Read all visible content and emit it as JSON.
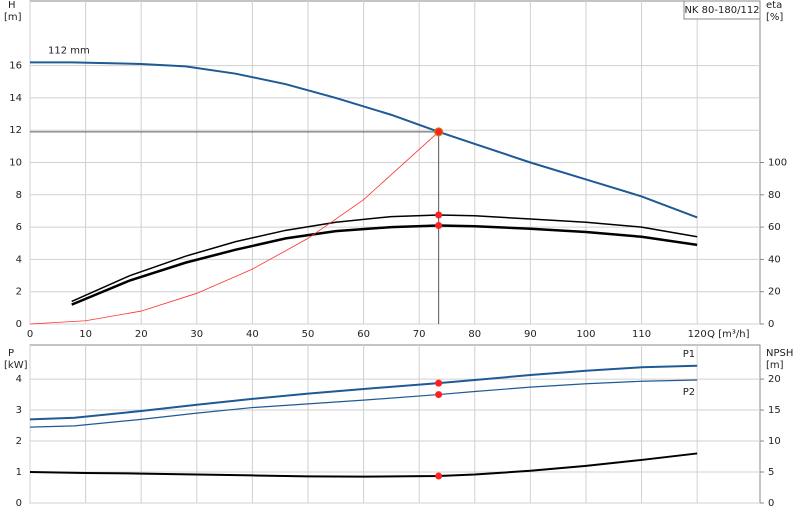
{
  "chart_data": [
    {
      "type": "line",
      "title": "NK 80-180/112",
      "ylabel": "H",
      "yunit": "[m]",
      "y2label": "eta",
      "y2unit": "[%]",
      "xlabel": "Q [m³/h]",
      "xlim": [
        0,
        131.3
      ],
      "xticks": [
        0,
        10,
        20,
        30,
        40,
        50,
        60,
        70,
        80,
        90,
        100,
        110,
        120
      ],
      "ylim": [
        0,
        20
      ],
      "yticks": [
        0,
        2,
        4,
        6,
        8,
        10,
        12,
        14,
        16
      ],
      "y2lim": [
        0,
        200
      ],
      "y2ticks": [
        0,
        20,
        40,
        60,
        80,
        100
      ],
      "grid": true,
      "operating_point": {
        "x": 73.5,
        "y": 11.9
      },
      "series": [
        {
          "name": "112 mm",
          "color": "#1f5a96",
          "line_width": 2,
          "x": [
            0,
            7.5,
            20,
            28,
            37,
            46,
            55,
            65,
            73.5,
            80,
            90,
            100,
            110,
            120
          ],
          "values": [
            16.2,
            16.2,
            16.1,
            15.95,
            15.5,
            14.85,
            14.0,
            12.95,
            11.9,
            11.15,
            10.0,
            8.95,
            7.9,
            6.6
          ]
        },
        {
          "color": "#000000",
          "line_width": 1.5,
          "axis": "y2",
          "x": [
            7.5,
            18,
            28,
            37,
            46,
            55,
            65,
            73.5,
            80,
            90,
            100,
            110,
            120
          ],
          "values": [
            14,
            30,
            42,
            51,
            58,
            63,
            66.5,
            67.5,
            67,
            65,
            63,
            60,
            54
          ]
        },
        {
          "color": "#000000",
          "line_width": 2.5,
          "axis": "y2",
          "x": [
            7.5,
            18,
            28,
            37,
            46,
            55,
            65,
            73.5,
            80,
            90,
            100,
            110,
            120
          ],
          "values": [
            12,
            27,
            38,
            46,
            53,
            57.5,
            60,
            61,
            60.5,
            59,
            57,
            54,
            49
          ]
        },
        {
          "color": "#ff3030",
          "line_width": 0.8,
          "x": [
            0,
            10,
            20,
            30,
            40,
            50,
            60,
            73.5
          ],
          "values": [
            0,
            0.2,
            0.8,
            1.9,
            3.4,
            5.3,
            7.7,
            11.9
          ]
        }
      ]
    },
    {
      "type": "line",
      "ylabel": "P",
      "yunit": "[kW]",
      "y2label": "NPSH",
      "y2unit": "[m]",
      "xlim": [
        0,
        131.3
      ],
      "xticks": [
        0,
        10,
        20,
        30,
        40,
        50,
        60,
        70,
        80,
        90,
        100,
        110,
        120
      ],
      "ylim": [
        0,
        5.1
      ],
      "yticks": [
        0,
        1,
        2,
        3,
        4
      ],
      "y2lim": [
        0,
        25.5
      ],
      "y2ticks": [
        0,
        5,
        10,
        15,
        20
      ],
      "grid": true,
      "operating_point": {
        "x": 73.5
      },
      "series": [
        {
          "name": "P1",
          "color": "#1f5a96",
          "line_width": 2,
          "x": [
            0,
            8,
            20,
            30,
            40,
            50,
            60,
            73.5,
            80,
            90,
            100,
            110,
            120
          ],
          "values": [
            2.7,
            2.75,
            2.97,
            3.17,
            3.36,
            3.53,
            3.68,
            3.87,
            3.97,
            4.13,
            4.27,
            4.38,
            4.43
          ]
        },
        {
          "name": "P2",
          "color": "#1f5a96",
          "line_width": 1.2,
          "x": [
            0,
            8,
            20,
            30,
            40,
            50,
            60,
            73.5,
            80,
            90,
            100,
            110,
            120
          ],
          "values": [
            2.45,
            2.49,
            2.7,
            2.9,
            3.08,
            3.2,
            3.32,
            3.5,
            3.6,
            3.74,
            3.85,
            3.93,
            3.97
          ]
        },
        {
          "color": "#000000",
          "line_width": 2,
          "axis": "y2",
          "x": [
            0,
            10,
            20,
            30,
            40,
            50,
            60,
            73.5,
            80,
            90,
            100,
            110,
            120
          ],
          "values": [
            5,
            4.85,
            4.75,
            4.6,
            4.45,
            4.3,
            4.25,
            4.35,
            4.6,
            5.2,
            6,
            6.95,
            8
          ]
        }
      ]
    }
  ]
}
